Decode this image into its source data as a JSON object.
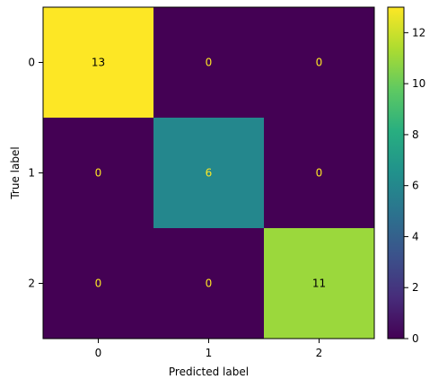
{
  "chart_data": {
    "type": "heatmap",
    "title": "",
    "xlabel": "Predicted label",
    "ylabel": "True label",
    "x_categories": [
      "0",
      "1",
      "2"
    ],
    "y_categories": [
      "0",
      "1",
      "2"
    ],
    "matrix": [
      [
        13,
        0,
        0
      ],
      [
        0,
        6,
        0
      ],
      [
        0,
        0,
        11
      ]
    ],
    "colormap": "viridis",
    "value_range": [
      0,
      13
    ],
    "colorbar": {
      "ticks": [
        0,
        2,
        4,
        6,
        8,
        10,
        12
      ],
      "tick_labels": [
        "0",
        "2",
        "4",
        "6",
        "8",
        "10",
        "12"
      ]
    },
    "text_colors": {
      "on_dark": "#fde725",
      "on_light": "#000000"
    },
    "grid": false,
    "legend": "colorbar-right"
  }
}
